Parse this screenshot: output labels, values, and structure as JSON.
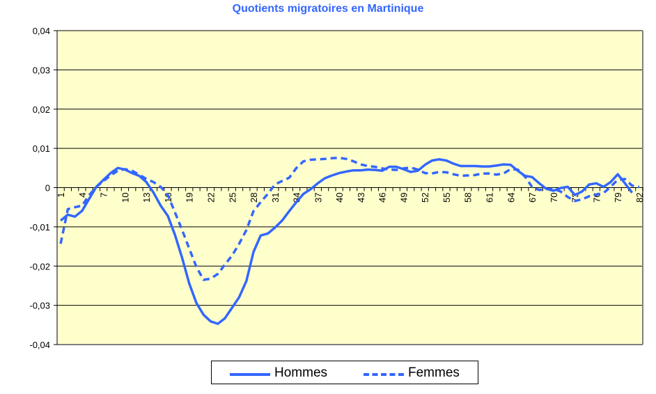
{
  "chart_data": {
    "type": "line",
    "title": "Quotients migratoires en Martinique",
    "xlabel": "",
    "ylabel": "",
    "ylim": [
      -0.04,
      0.04
    ],
    "yticks": [
      "0,04",
      "0,03",
      "0,02",
      "0,01",
      "0",
      "-0,01",
      "-0,02",
      "-0,03",
      "-0,04"
    ],
    "ytick_values": [
      0.04,
      0.03,
      0.02,
      0.01,
      0,
      -0.01,
      -0.02,
      -0.03,
      -0.04
    ],
    "xticks": [
      "1",
      "4",
      "7",
      "10",
      "13",
      "16",
      "19",
      "22",
      "25",
      "28",
      "31",
      "34",
      "37",
      "40",
      "43",
      "46",
      "49",
      "52",
      "55",
      "58",
      "61",
      "64",
      "67",
      "70",
      "73",
      "76",
      "79",
      "82"
    ],
    "x_range": [
      1,
      82
    ],
    "grid": "horizontal",
    "legend_position": "bottom",
    "background_color": "#ffffcc",
    "series": [
      {
        "name": "Hommes",
        "style": "solid",
        "color": "#3366ff",
        "values": [
          -0.0084,
          -0.0069,
          -0.0074,
          -0.0059,
          -0.0028,
          0.0002,
          0.002,
          0.0037,
          0.005,
          0.0046,
          0.0037,
          0.003,
          0.0014,
          -0.0013,
          -0.0046,
          -0.0072,
          -0.012,
          -0.0179,
          -0.0244,
          -0.0294,
          -0.0324,
          -0.0341,
          -0.0347,
          -0.0333,
          -0.0306,
          -0.0279,
          -0.0238,
          -0.0164,
          -0.0122,
          -0.0117,
          -0.0102,
          -0.0084,
          -0.006,
          -0.0037,
          -0.0016,
          -0.0004,
          0.0011,
          0.0024,
          0.0031,
          0.0037,
          0.0041,
          0.0044,
          0.0044,
          0.0046,
          0.0045,
          0.0043,
          0.0053,
          0.0053,
          0.0047,
          0.004,
          0.0043,
          0.0058,
          0.0069,
          0.0072,
          0.0069,
          0.0061,
          0.0055,
          0.0055,
          0.0055,
          0.0054,
          0.0054,
          0.0056,
          0.0059,
          0.0058,
          0.0043,
          0.003,
          0.0027,
          0.0011,
          -0.0003,
          -0.0008,
          -0.0001,
          0.0002,
          -0.0019,
          -0.001,
          0.0008,
          0.0011,
          0.0002,
          0.0014,
          0.0034,
          0.0011,
          -0.0013,
          null
        ]
      },
      {
        "name": "Femmes",
        "style": "dashed",
        "color": "#3366ff",
        "values": [
          -0.0143,
          -0.0055,
          -0.005,
          -0.0046,
          -0.0019,
          0.0002,
          0.0017,
          0.0031,
          0.0043,
          0.0047,
          0.0043,
          0.0033,
          0.0022,
          0.0014,
          0.0002,
          -0.0019,
          -0.0063,
          -0.0108,
          -0.0155,
          -0.0202,
          -0.0235,
          -0.0232,
          -0.022,
          -0.0196,
          -0.0173,
          -0.0143,
          -0.0108,
          -0.006,
          -0.0037,
          -0.0016,
          0.0008,
          0.0017,
          0.0025,
          0.005,
          0.0067,
          0.0071,
          0.0072,
          0.0073,
          0.0075,
          0.0076,
          0.0073,
          0.0067,
          0.0059,
          0.0055,
          0.0053,
          0.0049,
          0.0046,
          0.0045,
          0.0049,
          0.0051,
          0.0046,
          0.0037,
          0.0036,
          0.004,
          0.0039,
          0.0034,
          0.003,
          0.0031,
          0.0032,
          0.0036,
          0.0036,
          0.0033,
          0.0036,
          0.0047,
          0.0046,
          0.0028,
          0.0002,
          -0.0006,
          -0.0004,
          -0.0003,
          -0.001,
          -0.0024,
          -0.0034,
          -0.003,
          -0.0022,
          -0.0018,
          -0.0014,
          0.0002,
          0.002,
          0.0022,
          0.0005,
          0.0002
        ]
      }
    ]
  }
}
